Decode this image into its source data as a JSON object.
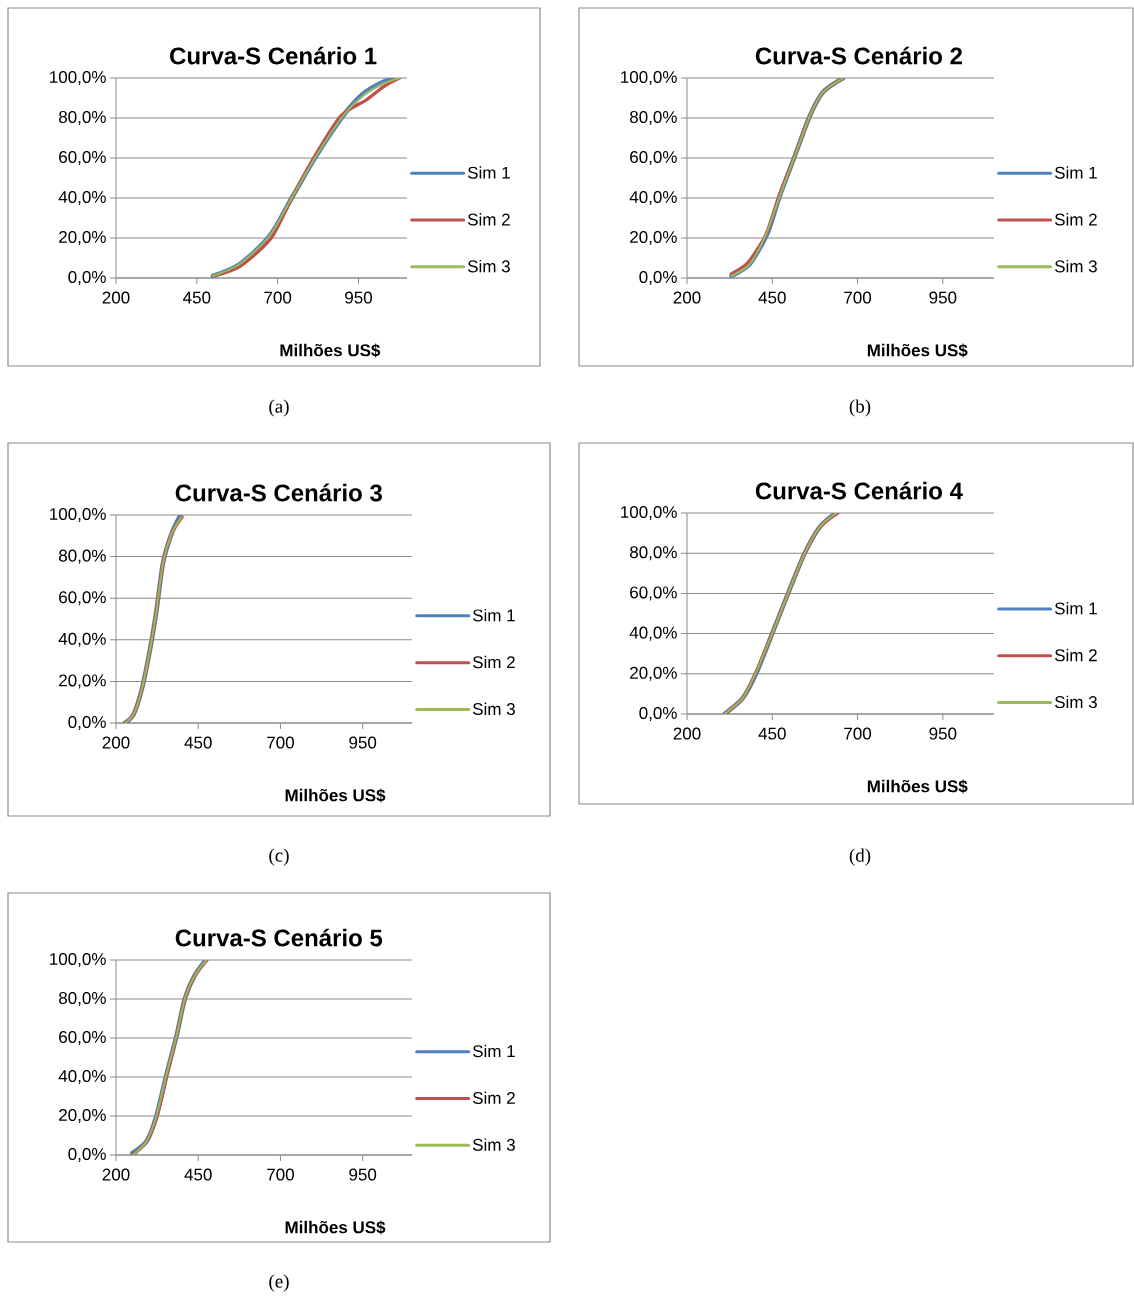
{
  "chart_data": [
    {
      "type": "line",
      "title": "Curva-S Cenário 1",
      "xlabel": "Milhões US$",
      "annotations": [
        "(a)"
      ],
      "xlim": [
        200,
        1100
      ],
      "xticks": [
        200,
        450,
        700,
        950
      ],
      "ylim": [
        0,
        100
      ],
      "yticks": [
        {
          "value": 0,
          "label": "0,0%"
        },
        {
          "value": 20,
          "label": "20,0%"
        },
        {
          "value": 40,
          "label": "40,0%"
        },
        {
          "value": 60,
          "label": "60,0%"
        },
        {
          "value": 80,
          "label": "80,0%"
        },
        {
          "value": 100,
          "label": "100,0%"
        }
      ],
      "grid": "y",
      "legend": "right",
      "marker": "none",
      "line_style": "solid",
      "series": [
        {
          "name": "Sim 1",
          "color": "#4f81bd",
          "x": [
            500,
            583,
            675,
            747,
            819,
            902,
            963,
            1025,
            1066
          ],
          "values": [
            1,
            7,
            21,
            41,
            61,
            81,
            92,
            98,
            100
          ]
        },
        {
          "name": "Sim 2",
          "color": "#c0504d",
          "x": [
            500,
            585,
            680,
            747,
            815,
            895,
            974,
            1030,
            1077
          ],
          "values": [
            1,
            6,
            20,
            41,
            61,
            81,
            89,
            96,
            100
          ]
        },
        {
          "name": "Sim 3",
          "color": "#9bbb59",
          "x": [
            500,
            583,
            675,
            747,
            819,
            902,
            963,
            1025,
            1077
          ],
          "values": [
            1,
            7,
            21,
            41,
            61,
            81,
            91,
            97,
            100
          ]
        }
      ]
    },
    {
      "type": "line",
      "title": "Curva-S Cenário 2",
      "xlabel": "Milhões US$",
      "annotations": [
        "(b)"
      ],
      "xlim": [
        200,
        1100
      ],
      "xticks": [
        200,
        450,
        700,
        950
      ],
      "ylim": [
        0,
        100
      ],
      "yticks": [
        {
          "value": 0,
          "label": "0,0%"
        },
        {
          "value": 20,
          "label": "20,0%"
        },
        {
          "value": 40,
          "label": "40,0%"
        },
        {
          "value": 60,
          "label": "60,0%"
        },
        {
          "value": 80,
          "label": "80,0%"
        },
        {
          "value": 100,
          "label": "100,0%"
        }
      ],
      "grid": "y",
      "legend": "right",
      "marker": "none",
      "line_style": "solid",
      "series": [
        {
          "name": "Sim 1",
          "color": "#4f81bd",
          "x": [
            330,
            384,
            435,
            472,
            516,
            560,
            599,
            658
          ],
          "values": [
            1,
            7,
            22,
            41,
            61,
            81,
            93,
            100
          ]
        },
        {
          "name": "Sim 2",
          "color": "#c0504d",
          "x": [
            330,
            380,
            432,
            470,
            516,
            560,
            599,
            658
          ],
          "values": [
            2,
            8,
            22,
            41,
            61,
            81,
            93,
            100
          ]
        },
        {
          "name": "Sim 3",
          "color": "#9bbb59",
          "x": [
            330,
            384,
            432,
            472,
            516,
            560,
            599,
            658
          ],
          "values": [
            1,
            7,
            22,
            41,
            61,
            81,
            93,
            100
          ]
        }
      ]
    },
    {
      "type": "line",
      "title": "Curva-S Cenário 3",
      "xlabel": "Milhões US$",
      "annotations": [
        "(c)"
      ],
      "xlim": [
        200,
        1100
      ],
      "xticks": [
        200,
        450,
        700,
        950
      ],
      "ylim": [
        0,
        100
      ],
      "yticks": [
        {
          "value": 0,
          "label": "0,0%"
        },
        {
          "value": 20,
          "label": "20,0%"
        },
        {
          "value": 40,
          "label": "40,0%"
        },
        {
          "value": 60,
          "label": "60,0%"
        },
        {
          "value": 80,
          "label": "80,0%"
        },
        {
          "value": 100,
          "label": "100,0%"
        }
      ],
      "grid": "y",
      "legend": "right",
      "marker": "none",
      "line_style": "solid",
      "series": [
        {
          "name": "Sim 1",
          "color": "#4f81bd",
          "x": [
            227,
            253,
            278,
            303,
            323,
            343,
            369,
            396
          ],
          "values": [
            0,
            4,
            16,
            35,
            54,
            77,
            91,
            100
          ]
        },
        {
          "name": "Sim 2",
          "color": "#c0504d",
          "x": [
            227,
            253,
            278,
            303,
            323,
            343,
            369,
            401
          ],
          "values": [
            0,
            4,
            16,
            35,
            54,
            77,
            91,
            99
          ]
        },
        {
          "name": "Sim 3",
          "color": "#9bbb59",
          "x": [
            227,
            253,
            278,
            303,
            323,
            343,
            369,
            399
          ],
          "values": [
            0,
            4,
            16,
            35,
            54,
            77,
            91,
            99
          ]
        }
      ]
    },
    {
      "type": "line",
      "title": "Curva-S Cenário 4",
      "xlabel": "Milhões US$",
      "annotations": [
        "(d)"
      ],
      "xlim": [
        200,
        1100
      ],
      "xticks": [
        200,
        450,
        700,
        950
      ],
      "ylim": [
        0,
        100
      ],
      "yticks": [
        {
          "value": 0,
          "label": "0,0%"
        },
        {
          "value": 20,
          "label": "20,0%"
        },
        {
          "value": 40,
          "label": "40,0%"
        },
        {
          "value": 60,
          "label": "60,0%"
        },
        {
          "value": 80,
          "label": "80,0%"
        },
        {
          "value": 100,
          "label": "100,0%"
        }
      ],
      "grid": "y",
      "legend": "right",
      "marker": "none",
      "line_style": "solid",
      "series": [
        {
          "name": "Sim 1",
          "color": "#4f81bd",
          "x": [
            310,
            364,
            405,
            452,
            501,
            545,
            589,
            636
          ],
          "values": [
            0,
            8,
            21,
            41,
            62,
            80,
            93,
            100
          ]
        },
        {
          "name": "Sim 2",
          "color": "#c0504d",
          "x": [
            310,
            364,
            403,
            452,
            501,
            545,
            589,
            642
          ],
          "values": [
            0,
            8,
            21,
            41,
            62,
            80,
            93,
            100
          ]
        },
        {
          "name": "Sim 3",
          "color": "#9bbb59",
          "x": [
            310,
            364,
            403,
            452,
            501,
            545,
            589,
            638
          ],
          "values": [
            0,
            8,
            21,
            41,
            62,
            80,
            93,
            100
          ]
        }
      ]
    },
    {
      "type": "line",
      "title": "Curva-S Cenário 5",
      "xlabel": "Milhões US$",
      "annotations": [
        "(e)"
      ],
      "xlim": [
        200,
        1100
      ],
      "xticks": [
        200,
        450,
        700,
        950
      ],
      "ylim": [
        0,
        100
      ],
      "yticks": [
        {
          "value": 0,
          "label": "0,0%"
        },
        {
          "value": 20,
          "label": "20,0%"
        },
        {
          "value": 40,
          "label": "40,0%"
        },
        {
          "value": 60,
          "label": "60,0%"
        },
        {
          "value": 80,
          "label": "80,0%"
        },
        {
          "value": 100,
          "label": "100,0%"
        }
      ],
      "grid": "y",
      "legend": "right",
      "marker": "none",
      "line_style": "solid",
      "series": [
        {
          "name": "Sim 1",
          "color": "#4f81bd",
          "x": [
            250,
            293,
            323,
            353,
            384,
            409,
            439,
            473
          ],
          "values": [
            1,
            7,
            20,
            41,
            61,
            80,
            92,
            100
          ]
        },
        {
          "name": "Sim 2",
          "color": "#c0504d",
          "x": [
            252,
            293,
            325,
            355,
            384,
            409,
            439,
            477
          ],
          "values": [
            0,
            7,
            20,
            41,
            61,
            80,
            92,
            100
          ]
        },
        {
          "name": "Sim 3",
          "color": "#9bbb59",
          "x": [
            252,
            293,
            323,
            353,
            384,
            409,
            439,
            475
          ],
          "values": [
            0,
            7,
            20,
            41,
            61,
            80,
            92,
            100
          ]
        }
      ]
    }
  ]
}
